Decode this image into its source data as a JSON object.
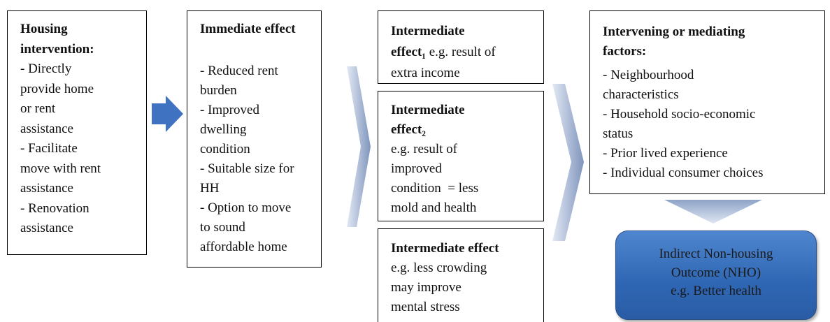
{
  "nodes": [
    {
      "lines": [
        [
          {
            "text": "Housing",
            "bold": true
          }
        ],
        [
          {
            "text": "intervention:",
            "bold": true
          }
        ],
        [
          {
            "text": "- Directly"
          }
        ],
        [
          {
            "text": "provide home"
          }
        ],
        [
          {
            "text": "or rent"
          }
        ],
        [
          {
            "text": "assistance"
          }
        ],
        [
          {
            "text": "- Facilitate"
          }
        ],
        [
          {
            "text": "move with rent"
          }
        ],
        [
          {
            "text": "assistance"
          }
        ],
        [
          {
            "text": "- Renovation"
          }
        ],
        [
          {
            "text": "assistance"
          }
        ]
      ]
    },
    {
      "lines": [
        [
          {
            "text": "Immediate effect",
            "bold": true
          }
        ],
        [
          {
            "text": "- Reduced rent"
          }
        ],
        [
          {
            "text": "burden"
          }
        ],
        [
          {
            "text": "- Improved"
          }
        ],
        [
          {
            "text": "dwelling"
          }
        ],
        [
          {
            "text": "condition"
          }
        ],
        [
          {
            "text": "- Suitable size for"
          }
        ],
        [
          {
            "text": "HH"
          }
        ],
        [
          {
            "text": "- Option to move"
          }
        ],
        [
          {
            "text": "to sound"
          }
        ],
        [
          {
            "text": "affordable home"
          }
        ]
      ]
    },
    {
      "lines": [
        [
          {
            "text": "Intermediate",
            "bold": true
          }
        ],
        [
          {
            "text": "effect₁",
            "bold": true
          },
          {
            "text": " e.g. result of"
          }
        ],
        [
          {
            "text": "extra income"
          }
        ]
      ]
    },
    {
      "lines": [
        [
          {
            "text": "Intermediate",
            "bold": true
          }
        ],
        [
          {
            "text": "effect₂",
            "bold": true
          }
        ],
        [
          {
            "text": "e.g. result of"
          }
        ],
        [
          {
            "text": "improved"
          }
        ],
        [
          {
            "text": "condition  = less"
          }
        ],
        [
          {
            "text": "mold and health"
          }
        ]
      ]
    },
    {
      "lines": [
        [
          {
            "text": "Intermediate effect",
            "bold": true
          }
        ],
        [
          {
            "text": "e.g. less crowding"
          }
        ],
        [
          {
            "text": "may improve"
          }
        ],
        [
          {
            "text": "mental stress"
          }
        ]
      ]
    },
    {
      "lines": [
        [
          {
            "text": "Intervening or mediating",
            "bold": true
          }
        ],
        [
          {
            "text": "factors:",
            "bold": true
          }
        ],
        [
          {
            "text": "- Neighbourhood"
          }
        ],
        [
          {
            "text": "characteristics"
          }
        ],
        [
          {
            "text": "- Household socio-economic"
          }
        ],
        [
          {
            "text": "status"
          }
        ],
        [
          {
            "text": "- Prior lived experience"
          }
        ],
        [
          {
            "text": "- Individual consumer choices"
          }
        ]
      ]
    },
    {
      "lines": [
        [
          {
            "text": "Indirect Non-housing"
          }
        ],
        [
          {
            "text": "Outcome (NHO)"
          }
        ],
        [
          {
            "text": "e.g. Better health"
          }
        ]
      ]
    }
  ]
}
